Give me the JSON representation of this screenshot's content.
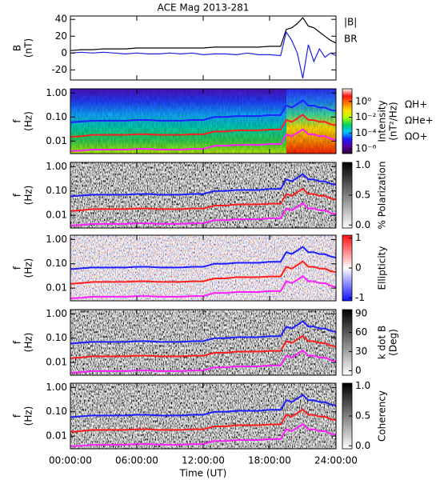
{
  "chart_data": [
    {
      "type": "line",
      "title": "ACE Mag 2013-281",
      "ylabel": [
        "B",
        "(nT)"
      ],
      "x": [
        0,
        1,
        2,
        3,
        4,
        5,
        6,
        7,
        8,
        9,
        10,
        11,
        12,
        13,
        14,
        15,
        16,
        17,
        18,
        19,
        19.5,
        20,
        20.5,
        21,
        21.5,
        22,
        22.5,
        23,
        23.5,
        24
      ],
      "series": [
        {
          "name": "|B|",
          "color": "#000000",
          "values": [
            3,
            4,
            4,
            5,
            5,
            5,
            6,
            6,
            6,
            6,
            6,
            6,
            6,
            7,
            7,
            7,
            7,
            7,
            8,
            8,
            28,
            30,
            35,
            42,
            32,
            30,
            25,
            20,
            15,
            12
          ]
        },
        {
          "name": "BR",
          "color": "#1f1fe0",
          "values": [
            0,
            1,
            0,
            1,
            0,
            -1,
            0,
            -1,
            -1,
            0,
            -1,
            0,
            -2,
            -1,
            -1,
            -2,
            0,
            -2,
            -2,
            -3,
            25,
            15,
            0,
            -30,
            10,
            -10,
            5,
            -5,
            0,
            -3
          ]
        }
      ],
      "ylim": [
        -32,
        44
      ],
      "yticks": [
        -20,
        0,
        20,
        40
      ]
    },
    {
      "type": "spectrogram",
      "ylabel": [
        "f",
        "(Hz)"
      ],
      "log": true,
      "ylim": [
        0.003,
        1.5
      ],
      "yticks": [
        {
          "value": 1,
          "label": "1.00"
        },
        {
          "value": 0.1,
          "label": "0.10"
        },
        {
          "value": 0.01,
          "label": "0.01"
        }
      ],
      "x": [
        0,
        1,
        2,
        3,
        4,
        5,
        6,
        7,
        8,
        9,
        10,
        11,
        12,
        13,
        14,
        15,
        16,
        17,
        18,
        19,
        19.5,
        20,
        20.5,
        21,
        21.5,
        22,
        22.5,
        23,
        23.5,
        24
      ],
      "series": [
        {
          "name": "ΩH+",
          "color": "#1f1fff",
          "values": [
            0.06,
            0.065,
            0.07,
            0.07,
            0.07,
            0.07,
            0.075,
            0.075,
            0.07,
            0.07,
            0.07,
            0.075,
            0.075,
            0.1,
            0.1,
            0.11,
            0.11,
            0.11,
            0.12,
            0.12,
            0.3,
            0.25,
            0.35,
            0.5,
            0.3,
            0.3,
            0.25,
            0.25,
            0.2,
            0.18
          ]
        },
        {
          "name": "ΩHe+",
          "color": "#ff1f1f",
          "values": [
            0.015,
            0.016,
            0.018,
            0.018,
            0.018,
            0.018,
            0.019,
            0.019,
            0.018,
            0.018,
            0.018,
            0.019,
            0.019,
            0.025,
            0.025,
            0.028,
            0.028,
            0.028,
            0.03,
            0.03,
            0.075,
            0.063,
            0.088,
            0.125,
            0.075,
            0.075,
            0.063,
            0.063,
            0.05,
            0.045
          ]
        },
        {
          "name": "ΩO+",
          "color": "#ff1fff",
          "values": [
            0.0038,
            0.004,
            0.0044,
            0.0044,
            0.0044,
            0.0044,
            0.0047,
            0.0047,
            0.0044,
            0.0044,
            0.0044,
            0.0047,
            0.0047,
            0.0063,
            0.0063,
            0.0069,
            0.0069,
            0.0069,
            0.0075,
            0.0075,
            0.019,
            0.016,
            0.022,
            0.031,
            0.019,
            0.019,
            0.016,
            0.016,
            0.0125,
            0.011
          ]
        }
      ],
      "colorbar": {
        "label": [
          "Intensity",
          "(nT²/Hz)"
        ],
        "colormap": "rainbow",
        "log": true,
        "lim": [
          2.5e-07,
          40
        ],
        "ticks": [
          {
            "value": 1,
            "label": "10⁰"
          },
          {
            "value": 0.01,
            "label": "10⁻²"
          },
          {
            "value": 0.0001,
            "label": "10⁻⁴"
          },
          {
            "value": 1e-06,
            "label": "10⁻⁶"
          }
        ]
      }
    },
    {
      "type": "spectrogram",
      "ylabel": [
        "f",
        "(Hz)"
      ],
      "log": true,
      "ylim": [
        0.003,
        1.5
      ],
      "yticks": [
        {
          "value": 1,
          "label": "1.00"
        },
        {
          "value": 0.1,
          "label": "0.10"
        },
        {
          "value": 0.01,
          "label": "0.01"
        }
      ],
      "colorbar": {
        "label": [
          "% Polarization"
        ],
        "colormap": "gray",
        "lim": [
          -0.05,
          1.05
        ],
        "ticks": [
          {
            "value": 0,
            "label": "0.0"
          },
          {
            "value": 0.5,
            "label": "0.5"
          },
          {
            "value": 1,
            "label": "1.0"
          }
        ]
      }
    },
    {
      "type": "spectrogram",
      "ylabel": [
        "f",
        "(Hz)"
      ],
      "log": true,
      "ylim": [
        0.003,
        1.5
      ],
      "yticks": [
        {
          "value": 1,
          "label": "1.00"
        },
        {
          "value": 0.1,
          "label": "0.10"
        },
        {
          "value": 0.01,
          "label": "0.01"
        }
      ],
      "colorbar": {
        "label": [
          "Ellipticity"
        ],
        "colormap": "bwr",
        "lim": [
          -1.1,
          1.1
        ],
        "ticks": [
          -1,
          0,
          1
        ]
      }
    },
    {
      "type": "spectrogram",
      "ylabel": [
        "f",
        "(Hz)"
      ],
      "log": true,
      "ylim": [
        0.003,
        1.5
      ],
      "yticks": [
        {
          "value": 1,
          "label": "1.00"
        },
        {
          "value": 0.1,
          "label": "0.10"
        },
        {
          "value": 0.01,
          "label": "0.01"
        }
      ],
      "colorbar": {
        "label": [
          "k dot B",
          "(Deg)"
        ],
        "colormap": "gray",
        "lim": [
          -7,
          96
        ],
        "ticks": [
          0,
          30,
          60,
          90
        ]
      }
    },
    {
      "type": "spectrogram",
      "ylabel": [
        "f",
        "(Hz)"
      ],
      "log": true,
      "ylim": [
        0.003,
        1.5
      ],
      "yticks": [
        {
          "value": 1,
          "label": "1.00"
        },
        {
          "value": 0.1,
          "label": "0.10"
        },
        {
          "value": 0.01,
          "label": "0.01"
        }
      ],
      "colorbar": {
        "label": [
          "Coherency"
        ],
        "colormap": "gray",
        "lim": [
          -0.05,
          1.05
        ],
        "ticks": [
          {
            "value": 0,
            "label": "0.0"
          },
          {
            "value": 0.5,
            "label": "0.5"
          },
          {
            "value": 1,
            "label": "1.0"
          }
        ]
      },
      "xlabel": "Time (UT)",
      "xlim": [
        0,
        24
      ],
      "xticks": [
        {
          "value": 0,
          "label": "00:00:00"
        },
        {
          "value": 6,
          "label": "06:00:00"
        },
        {
          "value": 12,
          "label": "12:00:00"
        },
        {
          "value": 18,
          "label": "18:00:00"
        },
        {
          "value": 24,
          "label": "24:00:00"
        }
      ]
    }
  ]
}
